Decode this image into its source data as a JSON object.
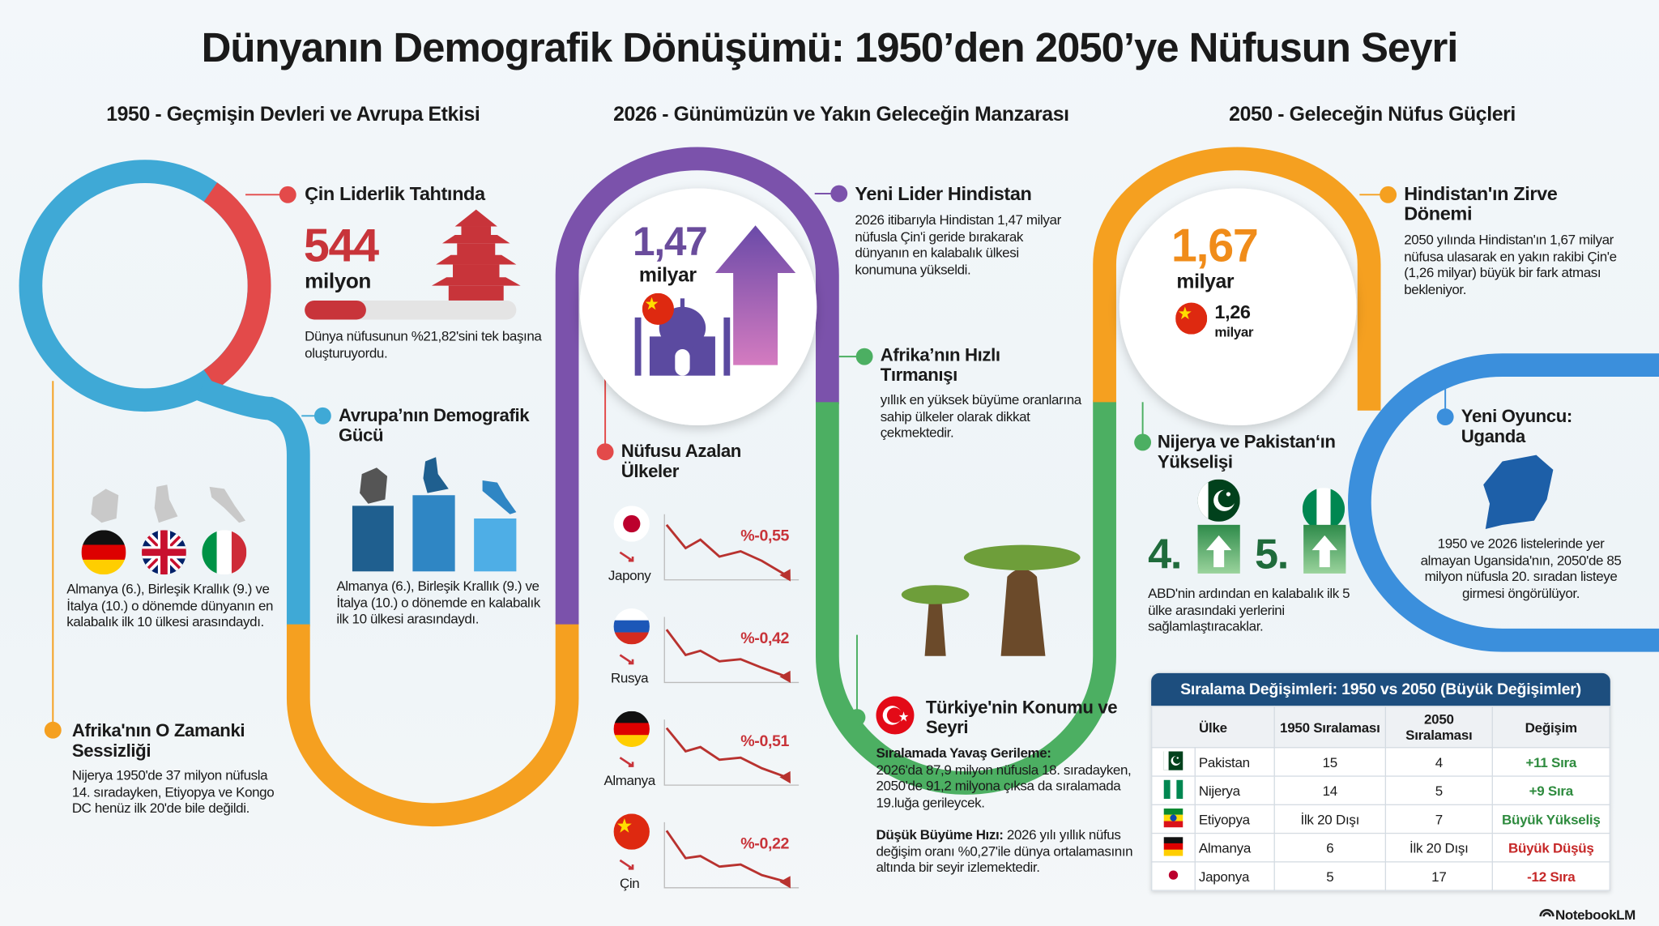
{
  "title": "Dünyanın Demografik Dönüşümü: 1950’den 2050’ye Nüfusun Seyri",
  "sections": [
    "1950 - Geçmişin Devleri ve Avrupa Etkisi",
    "2026 - Günümüzün ve Yakın Geleceğin Manzarası",
    "2050 - Geleceğin Nüfus Güçleri"
  ],
  "china_1950": {
    "heading": "Çin Liderlik Tahtında",
    "number": "544",
    "unit": "milyon",
    "text": "Dünya nüfusunun %21,82'sini tek başına oluşturuyordu."
  },
  "europe_left": {
    "text": "Almanya (6.), Birleşik Krallık (9.) ve İtalya (10.) o dönemde dünyanın en kalabalık ilk 10 ülkesi arasındaydı."
  },
  "europe": {
    "heading": "Avrupa’nın Demografik Gücü",
    "text": "Almanya (6.), Birleşik Krallık (9.) ve İtalya (10.) o dönemde en kalabalık ilk 10 ülkesi arasındaydı."
  },
  "africa_1950": {
    "heading": "Afrika'nın O Zamanki Sessizliği",
    "text": "Nijerya 1950'de 37 milyon nüfusla 14. sıradayken, Etiyopya ve Kongo DC henüz ilk 20'de bile değildi."
  },
  "india_2026": {
    "number": "1,47",
    "unit": "milyar",
    "heading": "Yeni Lider Hindistan",
    "text": "2026 itibarıyla Hindistan 1,47 milyar nüfusla Çin'i geride bırakarak dünyanın en kalabalık ülkesi konumuna yükseldi."
  },
  "declining": {
    "heading": "Nüfusu Azalan Ülkeler",
    "items": [
      {
        "country": "Japony",
        "change": "%-0,55"
      },
      {
        "country": "Rusya",
        "change": "%-0,42"
      },
      {
        "country": "Almanya",
        "change": "%-0,51"
      },
      {
        "country": "Çin",
        "change": "%-0,22"
      }
    ]
  },
  "africa_rise": {
    "heading": "Afrika’nın Hızlı Tırmanışı",
    "text": "yıllık en yüksek büyüme oranlarına sahip ülkeler olarak dikkat çekmektedir."
  },
  "turkey": {
    "heading": "Türkiye'nin Konumu ve Seyri",
    "p1_label": "Sıralamada Yavaş Gerileme:",
    "p1": "2026'da 87,9 milyon nüfusla 18. sıradayken, 2050'de 91,2 milyona çıksa da sıralamada 19.luğa gerileycek.",
    "p2_label": "Düşük Büyüme Hızı:",
    "p2": "2026 yılı yıllık nüfus değişim oranı %0,27'ile dünya ortalamasının altında bir seyir izlemektedir."
  },
  "india_2050": {
    "number": "1,67",
    "unit": "milyar",
    "china_number": "1,26",
    "china_unit": "milyar",
    "heading": "Hindistan'ın Zirve Dönemi",
    "text": "2050 yılında Hindistan'ın 1,67 milyar nüfusa ulasarak en yakın rakibi Çin'e (1,26 milyar) büyük bir fark atması bekleniyor."
  },
  "nigeria_pakistan": {
    "heading": "Nijerya ve Pakistan‘ın Yükselişi",
    "ranks": [
      "4.",
      "5."
    ],
    "text": "ABD'nin ardından en kalabalık ilk 5 ülke arasındaki yerlerini sağlamlaştıracaklar."
  },
  "uganda": {
    "heading": "Yeni Oyuncu: Uganda",
    "text": "1950 ve 2026 listelerinde yer almayan Ugansida'nın, 2050'de 85 milyon nüfusla 20. sıradan listeye girmesi öngörülüyor."
  },
  "table": {
    "title": "Sıralama Değişimleri: 1950 vs 2050 (Büyük Değişimler)",
    "header": [
      "Ülke",
      "1950 Sıralaması",
      "2050 Sıralaması",
      "Değişim"
    ],
    "rows": [
      {
        "country": "Pakistan",
        "r1950": "15",
        "r2050": "4",
        "change": "+11 Sıra",
        "change_color": "#2e8b3e"
      },
      {
        "country": "Nijerya",
        "r1950": "14",
        "r2050": "5",
        "change": "+9 Sıra",
        "change_color": "#2e8b3e"
      },
      {
        "country": "Etiyopya",
        "r1950": "İlk 20 Dışı",
        "r2050": "7",
        "change": "Büyük Yükseliş",
        "change_color": "#2e8b3e"
      },
      {
        "country": "Almanya",
        "r1950": "6",
        "r2050": "İlk 20 Dışı",
        "change": "Büyük Düşüş",
        "change_color": "#c62828"
      },
      {
        "country": "Japonya",
        "r1950": "5",
        "r2050": "17",
        "change": "-12 Sıra",
        "change_color": "#c62828"
      }
    ]
  },
  "brand": "NotebookLM"
}
